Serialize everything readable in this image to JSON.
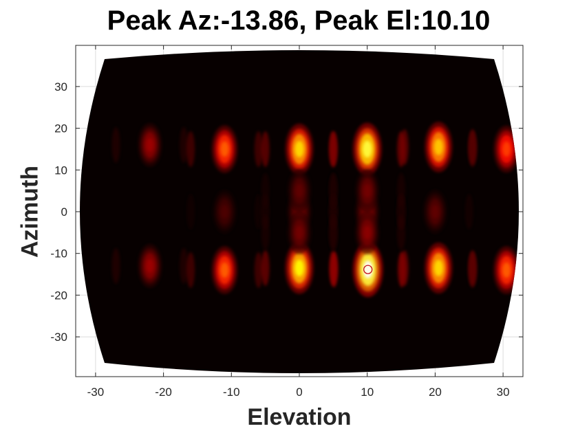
{
  "chart_data": {
    "type": "heatmap",
    "title": "Peak Az:-13.86, Peak El:10.10",
    "xlabel": "Elevation",
    "ylabel": "Azimuth",
    "xlim": [
      -33.5,
      33.5
    ],
    "ylim": [
      -39.5,
      39.5
    ],
    "xticks": [
      -30,
      -20,
      -10,
      0,
      10,
      20,
      30
    ],
    "yticks": [
      -30,
      -20,
      -10,
      0,
      10,
      20,
      30
    ],
    "xtick_labels": [
      "-30",
      "-20",
      "-10",
      "0",
      "10",
      "20",
      "30"
    ],
    "ytick_labels": [
      "-30",
      "-20",
      "-10",
      "0",
      "10",
      "20",
      "30"
    ],
    "grid": true,
    "colormap": "hot",
    "background_color": "#000000",
    "peak_marker": {
      "az": -13.86,
      "el": 10.1,
      "shape": "circle",
      "color": "#c0101a"
    },
    "lobes": [
      {
        "el": -22,
        "az": 16,
        "intensity": 0.25
      },
      {
        "el": -11,
        "az": 15,
        "intensity": 0.55
      },
      {
        "el": 0,
        "az": 15,
        "intensity": 0.75
      },
      {
        "el": 10,
        "az": 15,
        "intensity": 0.85
      },
      {
        "el": 20.5,
        "az": 15.5,
        "intensity": 0.72
      },
      {
        "el": 30.5,
        "az": 15,
        "intensity": 0.5
      },
      {
        "el": -22,
        "az": -13,
        "intensity": 0.25
      },
      {
        "el": -11,
        "az": -14,
        "intensity": 0.55
      },
      {
        "el": 0,
        "az": -13.5,
        "intensity": 0.8
      },
      {
        "el": 10.1,
        "az": -13.86,
        "intensity": 1.0
      },
      {
        "el": 20.5,
        "az": -13.5,
        "intensity": 0.75
      },
      {
        "el": 30.5,
        "az": -14,
        "intensity": 0.55
      },
      {
        "el": -11,
        "az": 0,
        "intensity": 0.12
      },
      {
        "el": 0,
        "az": 0,
        "intensity": 0.2
      },
      {
        "el": 10,
        "az": 0,
        "intensity": 0.22
      },
      {
        "el": 20,
        "az": 0,
        "intensity": 0.15
      },
      {
        "el": 0,
        "az": 5,
        "intensity": 0.15
      },
      {
        "el": 10,
        "az": 5,
        "intensity": 0.18
      },
      {
        "el": 0,
        "az": -5,
        "intensity": 0.18
      },
      {
        "el": 10,
        "az": -5,
        "intensity": 0.22
      }
    ]
  }
}
